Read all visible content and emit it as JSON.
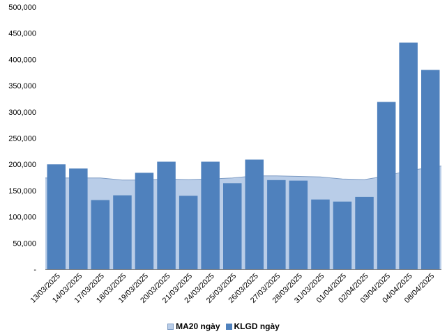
{
  "chart_data": {
    "type": "bar",
    "categories": [
      "13/03/2025",
      "14/03/2025",
      "17/03/2025",
      "18/03/2025",
      "19/03/2025",
      "20/03/2025",
      "21/03/2025",
      "24/03/2025",
      "25/03/2025",
      "26/03/2025",
      "27/03/2025",
      "28/03/2025",
      "31/03/2025",
      "01/04/2025",
      "02/04/2025",
      "03/04/2025",
      "04/04/2025",
      "08/04/2025"
    ],
    "ylim": [
      0,
      500000
    ],
    "yticks": [
      "-",
      "50,000",
      "100,000",
      "150,000",
      "200,000",
      "250,000",
      "300,000",
      "350,000",
      "400,000",
      "450,000",
      "500,000"
    ],
    "series": [
      {
        "name": "MA20 ngày",
        "type": "area",
        "color": "#b9cde8",
        "line_color": "#7e9cc4",
        "values": [
          174000,
          174000,
          174000,
          170000,
          170000,
          172000,
          171000,
          172000,
          174000,
          178000,
          178000,
          177000,
          176000,
          172000,
          171000,
          178000,
          188000,
          197000
        ]
      },
      {
        "name": "KLGD ngày",
        "type": "bar",
        "color": "#4f81bd",
        "values": [
          200000,
          192000,
          132000,
          141000,
          184000,
          205000,
          140000,
          205000,
          164000,
          209000,
          170000,
          169000,
          133000,
          129000,
          138000,
          319000,
          432000,
          380000
        ]
      }
    ],
    "grid": false,
    "legend": "bottom"
  }
}
